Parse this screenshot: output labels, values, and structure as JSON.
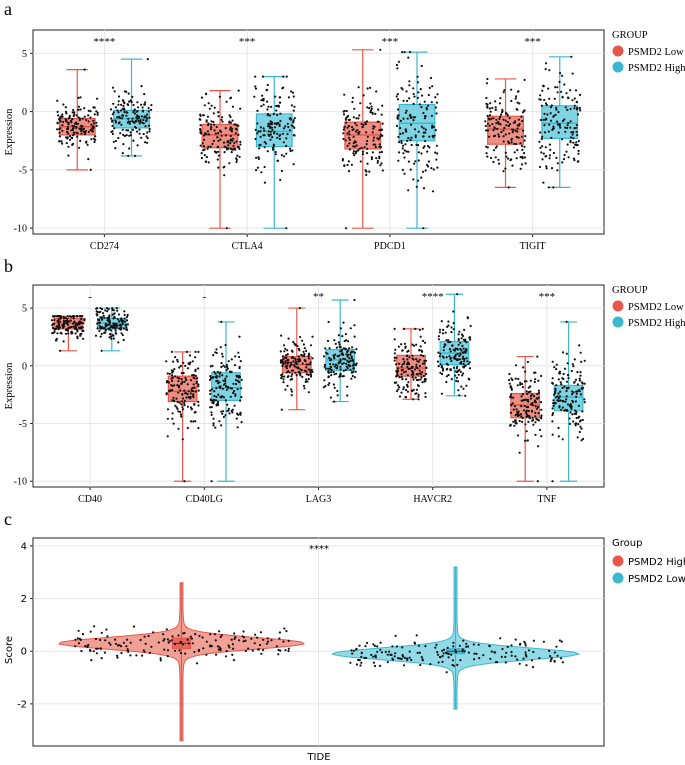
{
  "colors": {
    "low": "#e8584a",
    "low_fill": "#ef8f84",
    "high": "#3bb8cf",
    "high_fill": "#7fd3e2",
    "grid": "#e6e6e6",
    "point": "#111111"
  },
  "chart_data": [
    {
      "panel": "a",
      "type": "box",
      "ylabel": "Expression",
      "ylim": [
        -10.5,
        7
      ],
      "yticks": [
        5,
        0,
        -5,
        -10
      ],
      "legend": {
        "title": "GROUP",
        "entries": [
          "PSMD2 Low",
          "PSMD2 High"
        ]
      },
      "categories": [
        "CD274",
        "CTLA4",
        "PDCD1",
        "TIGIT"
      ],
      "significance": [
        "****",
        "***",
        "***",
        "***"
      ],
      "series": [
        {
          "name": "PSMD2 Low",
          "box": [
            {
              "min": -5,
              "q1": -2,
              "median": -1.3,
              "q3": -0.6,
              "max": 3.6
            },
            {
              "min": -10,
              "q1": -3.1,
              "median": -2,
              "q3": -1.1,
              "max": 1.8
            },
            {
              "min": -10,
              "q1": -3.2,
              "median": -2,
              "q3": -0.9,
              "max": 5.3
            },
            {
              "min": -6.5,
              "q1": -2.8,
              "median": -1.5,
              "q3": -0.4,
              "max": 2.8
            }
          ]
        },
        {
          "name": "PSMD2 High",
          "box": [
            {
              "min": -3.8,
              "q1": -1.4,
              "median": -0.6,
              "q3": 0.1,
              "max": 4.5
            },
            {
              "min": -10,
              "q1": -3,
              "median": -1.7,
              "q3": -0.2,
              "max": 3
            },
            {
              "min": -10,
              "q1": -2.5,
              "median": -1,
              "q3": 0.6,
              "max": 5.1
            },
            {
              "min": -6.5,
              "q1": -2.3,
              "median": -1,
              "q3": 0.5,
              "max": 4.7
            }
          ]
        }
      ]
    },
    {
      "panel": "b",
      "type": "box",
      "ylabel": "Expression",
      "ylim": [
        -10.5,
        7
      ],
      "yticks": [
        5,
        0,
        -5,
        -10
      ],
      "legend": {
        "title": "GROUP",
        "entries": [
          "PSMD2 Low",
          "PSMD2 High"
        ]
      },
      "categories": [
        "CD40",
        "CD40LG",
        "LAG3",
        "HAVCR2",
        "TNF"
      ],
      "significance": [
        "-",
        "-",
        "**",
        "****",
        "***"
      ],
      "series": [
        {
          "name": "PSMD2 Low",
          "box": [
            {
              "min": 1.3,
              "q1": 3.2,
              "median": 3.7,
              "q3": 4.1,
              "max": 4.3
            },
            {
              "min": -10,
              "q1": -3.1,
              "median": -2.2,
              "q3": -0.9,
              "max": 1.2
            },
            {
              "min": -3.8,
              "q1": -0.6,
              "median": 0.1,
              "q3": 0.8,
              "max": 5
            },
            {
              "min": -2.9,
              "q1": -0.9,
              "median": -0.2,
              "q3": 0.9,
              "max": 3.2
            },
            {
              "min": -10,
              "q1": -4.5,
              "median": -3.4,
              "q3": -2.4,
              "max": 0.8
            }
          ]
        },
        {
          "name": "PSMD2 High",
          "box": [
            {
              "min": 1.3,
              "q1": 3.2,
              "median": 3.7,
              "q3": 4.1,
              "max": 5
            },
            {
              "min": -10,
              "q1": -3,
              "median": -1.9,
              "q3": -0.6,
              "max": 3.8
            },
            {
              "min": -3.1,
              "q1": -0.4,
              "median": 0.5,
              "q3": 1.4,
              "max": 5.7
            },
            {
              "min": -2.6,
              "q1": 0.1,
              "median": 1.1,
              "q3": 2.1,
              "max": 6.2
            },
            {
              "min": -10,
              "q1": -3.9,
              "median": -2.7,
              "q3": -1.7,
              "max": 3.8
            }
          ]
        }
      ]
    },
    {
      "panel": "c",
      "type": "violin",
      "ylabel": "Score",
      "ylim": [
        -3.6,
        4.3
      ],
      "yticks": [
        4,
        2,
        0,
        -2
      ],
      "xlabel": "TIDE",
      "significance": "****",
      "legend": {
        "title": "Group",
        "entries": [
          "PSMD2 High",
          "PSMD2 Low"
        ]
      },
      "series": [
        {
          "name": "PSMD2 High",
          "min": -3.4,
          "max": 2.6,
          "median": 0.3,
          "q1": 0.1,
          "q3": 0.5,
          "mode": 0.3
        },
        {
          "name": "PSMD2 Low",
          "min": -2.2,
          "max": 3.2,
          "median": 0.0,
          "q1": -0.1,
          "q3": 0.1,
          "mode": -0.1
        }
      ]
    }
  ]
}
